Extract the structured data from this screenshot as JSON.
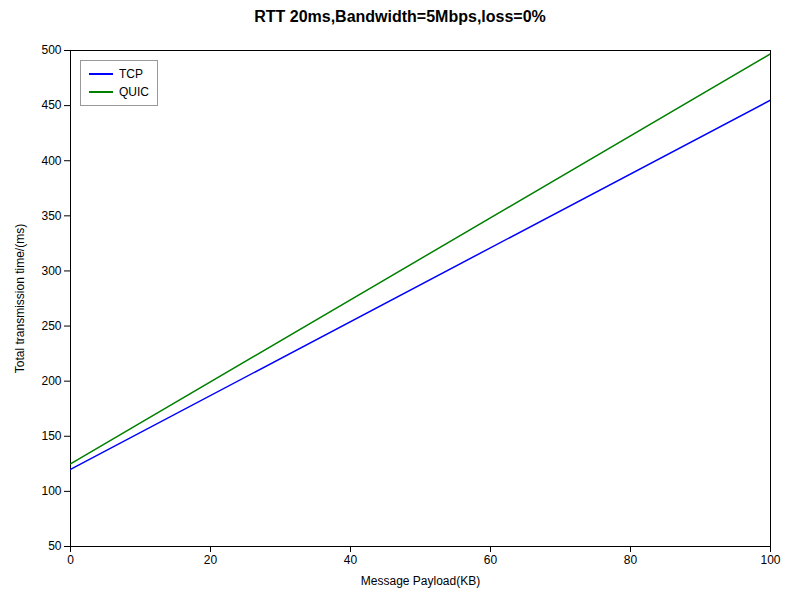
{
  "chart_data": {
    "type": "line",
    "title": "RTT 20ms,Bandwidth=5Mbps,loss=0%",
    "xlabel": "Message Payload(KB)",
    "ylabel": "Total transmission time/(ms)",
    "x": [
      0,
      100
    ],
    "series": [
      {
        "name": "TCP",
        "color": "blue",
        "values": [
          120,
          455
        ]
      },
      {
        "name": "QUIC",
        "color": "green",
        "values": [
          125,
          497
        ]
      }
    ],
    "xlim": [
      0,
      100
    ],
    "ylim": [
      50,
      500
    ],
    "xticks": [
      0,
      20,
      40,
      60,
      80,
      100
    ],
    "yticks": [
      50,
      100,
      150,
      200,
      250,
      300,
      350,
      400,
      450,
      500
    ],
    "legend": "upper left"
  }
}
